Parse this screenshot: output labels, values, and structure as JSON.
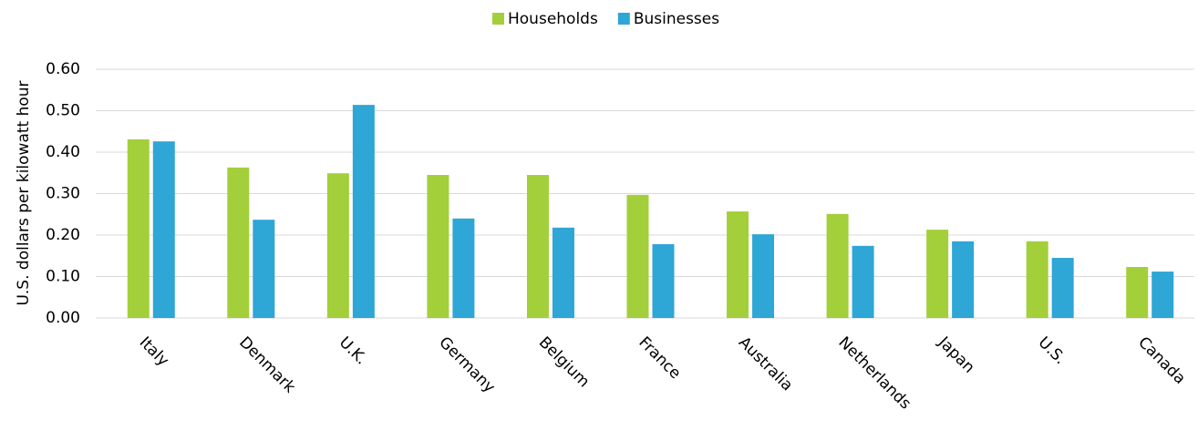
{
  "chart_data": {
    "type": "bar",
    "y_label": "U.S. dollars per kilowatt hour",
    "categories": [
      "Italy",
      "Denmark",
      "U.K.",
      "Germany",
      "Belgium",
      "France",
      "Australia",
      "Netherlands",
      "Japan",
      "U.S.",
      "Canada"
    ],
    "series": [
      {
        "name": "Households",
        "color": "#a3cf3a",
        "values": [
          0.431,
          0.363,
          0.349,
          0.345,
          0.345,
          0.297,
          0.257,
          0.251,
          0.213,
          0.185,
          0.123
        ]
      },
      {
        "name": "Businesses",
        "color": "#2ea6d6",
        "values": [
          0.426,
          0.237,
          0.514,
          0.24,
          0.218,
          0.178,
          0.202,
          0.174,
          0.185,
          0.145,
          0.112
        ]
      }
    ],
    "ylim": [
      0,
      0.6
    ],
    "yticks": [
      {
        "value": 0,
        "label": "0.00"
      },
      {
        "value": 0.1,
        "label": "0.10"
      },
      {
        "value": 0.2,
        "label": "0.20"
      },
      {
        "value": 0.3,
        "label": "0.30"
      },
      {
        "value": 0.4,
        "label": "0.40"
      },
      {
        "value": 0.5,
        "label": "0.50"
      },
      {
        "value": 0.6,
        "label": "0.60"
      }
    ],
    "grid": true,
    "legend": "top"
  }
}
